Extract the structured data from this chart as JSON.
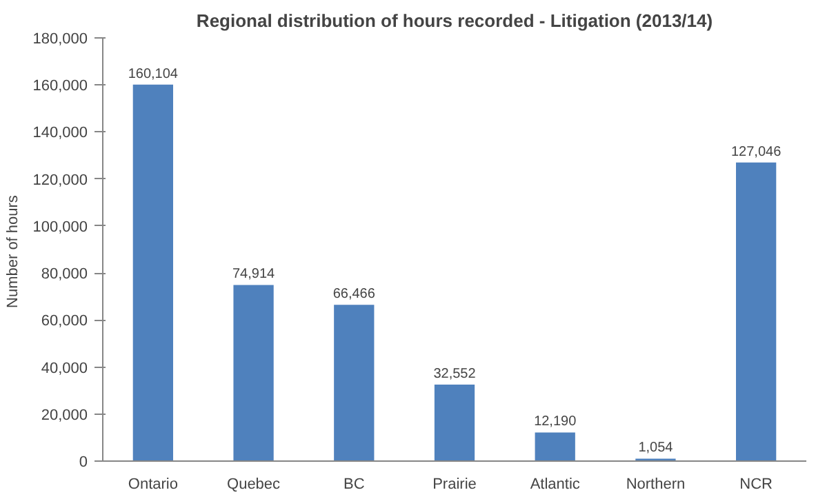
{
  "chart_data": {
    "type": "bar",
    "title": "Regional distribution of hours recorded - Litigation (2013/14)",
    "ylabel": "Number  of hours",
    "categories": [
      "Ontario",
      "Quebec",
      "BC",
      "Prairie",
      "Atlantic",
      "Northern",
      "NCR"
    ],
    "values": [
      160104,
      74914,
      66466,
      32552,
      12190,
      1054,
      127046
    ],
    "color": "#4f81bd",
    "ylim": [
      0,
      180000
    ],
    "yticks": [
      {
        "value": 0,
        "label": "0"
      },
      {
        "value": 20000,
        "label": "20,000"
      },
      {
        "value": 40000,
        "label": "40,000"
      },
      {
        "value": 60000,
        "label": "60,000"
      },
      {
        "value": 80000,
        "label": "80,000"
      },
      {
        "value": 100000,
        "label": "100,000"
      },
      {
        "value": 120000,
        "label": "120,000"
      },
      {
        "value": 140000,
        "label": "140,000"
      },
      {
        "value": 160000,
        "label": "160,000"
      },
      {
        "value": 180000,
        "label": "180,000"
      }
    ],
    "value_labels": [
      "160,104",
      "74,914",
      "66,466",
      "32,552",
      "12,190",
      "1,054",
      "127,046"
    ],
    "grid": false
  }
}
